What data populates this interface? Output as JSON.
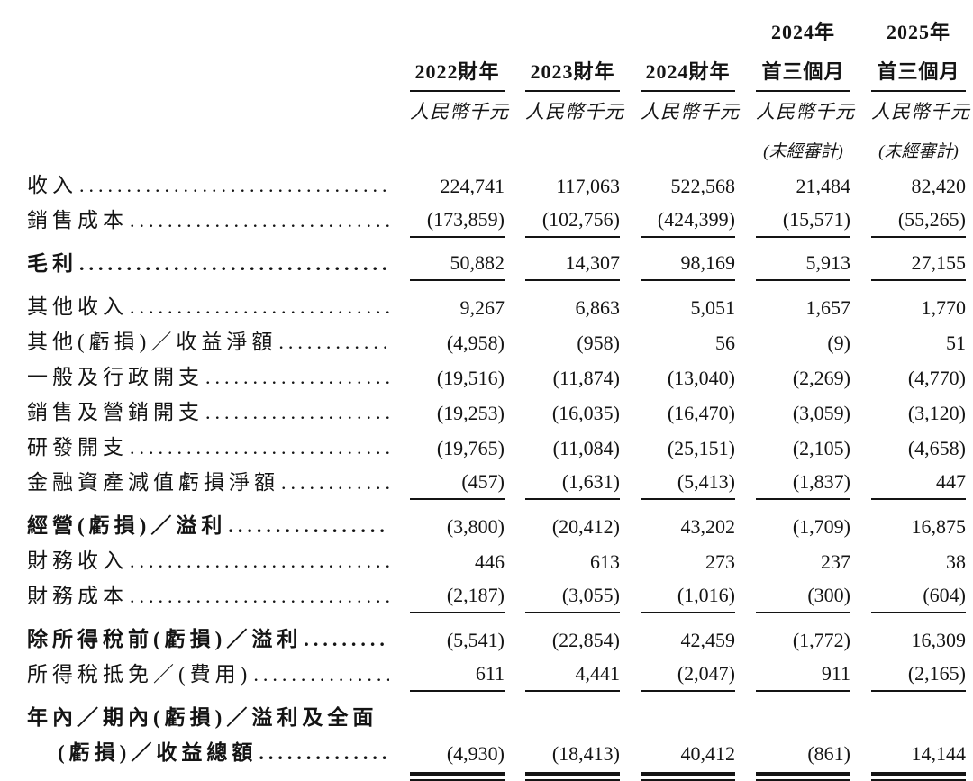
{
  "page": {
    "background": "#ffffff",
    "text_color": "#141414",
    "language": "zh-Hant",
    "kind": "income-statement-table"
  },
  "table": {
    "header": {
      "period_top": [
        "",
        "",
        "",
        "2024年",
        "2025年"
      ],
      "period": [
        "2022財年",
        "2023財年",
        "2024財年",
        "首三個月",
        "首三個月"
      ],
      "unit_label": "人民幣千元",
      "unaudited_label": "(未經審計)",
      "unaudited_columns": [
        false,
        false,
        false,
        true,
        true
      ]
    },
    "rows": [
      {
        "label": "收入",
        "values": [
          "224,741",
          "117,063",
          "522,568",
          "21,484",
          "82,420"
        ],
        "style": ""
      },
      {
        "label": "銷售成本",
        "values": [
          "(173,859)",
          "(102,756)",
          "(424,399)",
          "(15,571)",
          "(55,265)"
        ],
        "style": "u"
      },
      {
        "label": "毛利",
        "values": [
          "50,882",
          "14,307",
          "98,169",
          "5,913",
          "27,155"
        ],
        "style": "bold u gap"
      },
      {
        "label": "其他收入",
        "values": [
          "9,267",
          "6,863",
          "5,051",
          "1,657",
          "1,770"
        ],
        "style": "gap"
      },
      {
        "label": "其他(虧損)／收益淨額",
        "values": [
          "(4,958)",
          "(958)",
          "56",
          "(9)",
          "51"
        ],
        "style": ""
      },
      {
        "label": "一般及行政開支",
        "values": [
          "(19,516)",
          "(11,874)",
          "(13,040)",
          "(2,269)",
          "(4,770)"
        ],
        "style": ""
      },
      {
        "label": "銷售及營銷開支",
        "values": [
          "(19,253)",
          "(16,035)",
          "(16,470)",
          "(3,059)",
          "(3,120)"
        ],
        "style": ""
      },
      {
        "label": "研發開支",
        "values": [
          "(19,765)",
          "(11,084)",
          "(25,151)",
          "(2,105)",
          "(4,658)"
        ],
        "style": ""
      },
      {
        "label": "金融資產減值虧損淨額",
        "values": [
          "(457)",
          "(1,631)",
          "(5,413)",
          "(1,837)",
          "447"
        ],
        "style": "u"
      },
      {
        "label": "經營(虧損)／溢利",
        "values": [
          "(3,800)",
          "(20,412)",
          "43,202",
          "(1,709)",
          "16,875"
        ],
        "style": "bold gap"
      },
      {
        "label": "財務收入",
        "values": [
          "446",
          "613",
          "273",
          "237",
          "38"
        ],
        "style": ""
      },
      {
        "label": "財務成本",
        "values": [
          "(2,187)",
          "(3,055)",
          "(1,016)",
          "(300)",
          "(604)"
        ],
        "style": "u"
      },
      {
        "label": "除所得稅前(虧損)／溢利",
        "values": [
          "(5,541)",
          "(22,854)",
          "42,459",
          "(1,772)",
          "16,309"
        ],
        "style": "bold gap"
      },
      {
        "label": "所得稅抵免／(費用)",
        "values": [
          "611",
          "4,441",
          "(2,047)",
          "911",
          "(2,165)"
        ],
        "style": "u"
      },
      {
        "label": "年內／期內(虧損)／溢利及全面",
        "values": null,
        "style": "bold gap nolead"
      },
      {
        "label": "(虧損)／收益總額",
        "values": [
          "(4,930)",
          "(18,413)",
          "40,412",
          "(861)",
          "14,144"
        ],
        "style": "bold uu indent"
      }
    ]
  }
}
